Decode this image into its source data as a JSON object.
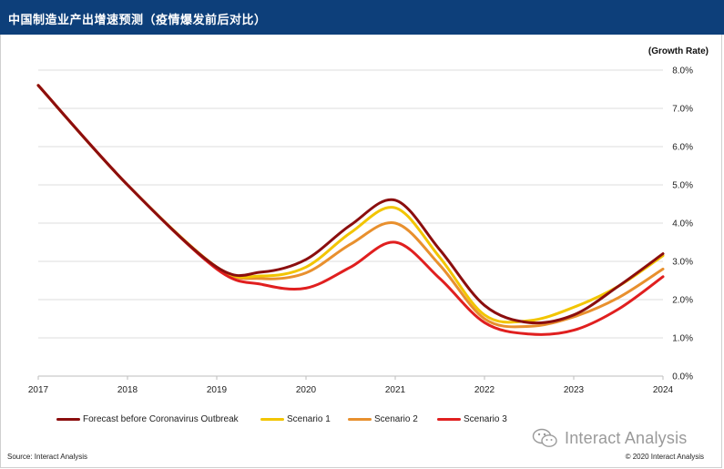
{
  "header": {
    "title": "中国制造业产出增速预测（疫情爆发前后对比）",
    "background_color": "#0d3f7a"
  },
  "footer": {
    "source": "Source: Interact Analysis",
    "copyright": "© 2020 Interact Analysis",
    "watermark": "Interact Analysis"
  },
  "chart_data": {
    "type": "line",
    "title": "",
    "ylabel": "(Growth Rate)",
    "xlabel": "",
    "x_ticks": [
      "2017",
      "2018",
      "2019",
      "2020",
      "2021",
      "2022",
      "2023",
      "2024"
    ],
    "y_ticks": [
      "0.0%",
      "1.0%",
      "2.0%",
      "3.0%",
      "4.0%",
      "5.0%",
      "6.0%",
      "7.0%",
      "8.0%"
    ],
    "ylim": [
      0,
      8
    ],
    "xlim": [
      2017,
      2024
    ],
    "grid": "horizontal",
    "legend_position": "bottom",
    "y_axis_side": "right",
    "series": [
      {
        "name": "Forecast before Coronavirus Outbreak",
        "color": "#8b0e0e",
        "x": [
          2017,
          2018,
          2019,
          2019.5,
          2020,
          2020.5,
          2021,
          2021.5,
          2022,
          2022.5,
          2023,
          2023.5,
          2024
        ],
        "values": [
          7.6,
          5.0,
          2.85,
          2.72,
          3.05,
          3.95,
          4.6,
          3.3,
          1.85,
          1.4,
          1.6,
          2.35,
          3.2
        ]
      },
      {
        "name": "Scenario 1",
        "color": "#f2c500",
        "x": [
          2017,
          2018,
          2019,
          2019.5,
          2020,
          2020.5,
          2021,
          2021.5,
          2022,
          2022.5,
          2023,
          2023.5,
          2024
        ],
        "values": [
          7.6,
          5.0,
          2.85,
          2.62,
          2.85,
          3.75,
          4.4,
          3.1,
          1.6,
          1.45,
          1.8,
          2.35,
          3.15
        ]
      },
      {
        "name": "Scenario 2",
        "color": "#e8902e",
        "x": [
          2017,
          2018,
          2019,
          2019.5,
          2020,
          2020.5,
          2021,
          2021.5,
          2022,
          2022.5,
          2023,
          2023.5,
          2024
        ],
        "values": [
          7.6,
          5.0,
          2.85,
          2.55,
          2.7,
          3.45,
          4.0,
          2.9,
          1.5,
          1.3,
          1.55,
          2.05,
          2.8
        ]
      },
      {
        "name": "Scenario 3",
        "color": "#e01f1f",
        "x": [
          2017,
          2018,
          2019,
          2019.5,
          2020,
          2020.5,
          2021,
          2021.5,
          2022,
          2022.5,
          2023,
          2023.5,
          2024
        ],
        "values": [
          7.6,
          5.0,
          2.8,
          2.4,
          2.3,
          2.85,
          3.5,
          2.55,
          1.4,
          1.1,
          1.2,
          1.75,
          2.6
        ]
      }
    ]
  }
}
